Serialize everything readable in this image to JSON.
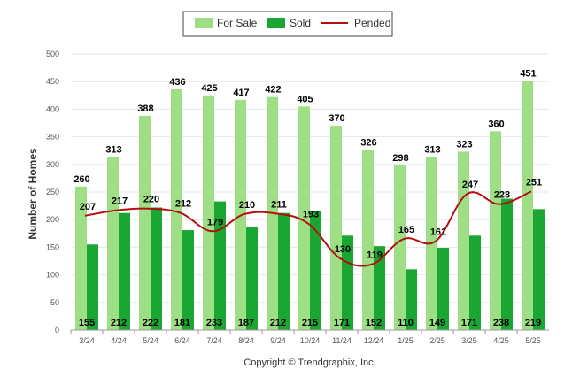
{
  "chart_data": {
    "type": "bar",
    "title": "",
    "xlabel": "",
    "ylabel": "Number of Homes",
    "ylim": [
      0,
      500
    ],
    "yticks": [
      0,
      50,
      100,
      150,
      200,
      250,
      300,
      350,
      400,
      450,
      500
    ],
    "grid": true,
    "legend_position": "top-center",
    "categories": [
      "3/24",
      "4/24",
      "5/24",
      "6/24",
      "7/24",
      "8/24",
      "9/24",
      "10/24",
      "11/24",
      "12/24",
      "1/25",
      "2/25",
      "3/25",
      "4/25",
      "5/25"
    ],
    "series": [
      {
        "name": "For Sale",
        "type": "bar",
        "color": "#9edf86",
        "values": [
          260,
          313,
          388,
          436,
          425,
          417,
          422,
          405,
          370,
          326,
          298,
          313,
          323,
          360,
          451
        ]
      },
      {
        "name": "Sold",
        "type": "bar",
        "color": "#1aa632",
        "values": [
          155,
          212,
          222,
          181,
          233,
          187,
          212,
          215,
          171,
          152,
          110,
          149,
          171,
          238,
          219
        ]
      },
      {
        "name": "Pended",
        "type": "line",
        "color": "#b30f0f",
        "values": [
          207,
          217,
          220,
          212,
          179,
          210,
          211,
          193,
          130,
          119,
          165,
          161,
          247,
          228,
          251
        ]
      }
    ]
  },
  "footer": {
    "copyright": "Copyright © Trendgraphix, Inc."
  }
}
